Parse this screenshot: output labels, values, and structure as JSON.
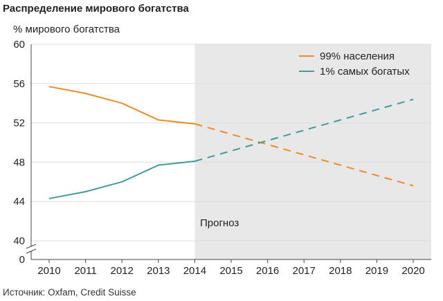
{
  "title": "Распределение мирового богатства",
  "source": "Источник: Oxfam, Credit Suisse",
  "colors": {
    "series_99": "#f08a24",
    "series_1": "#3e9c9e",
    "forecast_band": "#e8e8e8",
    "grid": "#dddddd",
    "axis": "#444444",
    "text": "#222222"
  },
  "chart_data": {
    "type": "line",
    "title": "Распределение мирового богатства",
    "ylabel": "% мирового богатства",
    "xlabel": "",
    "x": [
      2010,
      2011,
      2012,
      2013,
      2014,
      2015,
      2016,
      2017,
      2018,
      2019,
      2020
    ],
    "ylim": [
      40,
      60
    ],
    "y_axis_break": true,
    "yticks": [
      0,
      40,
      44,
      48,
      52,
      56,
      60
    ],
    "grid": true,
    "legend_position": "top-right",
    "forecast_label": "Прогноз",
    "forecast_from": 2014,
    "series": [
      {
        "name": "99% населения",
        "color": "#f08a24",
        "actual": {
          "x": [
            2010,
            2011,
            2012,
            2013,
            2014
          ],
          "y": [
            55.7,
            55.0,
            54.0,
            52.3,
            51.9
          ]
        },
        "forecast": {
          "x": [
            2014,
            2020
          ],
          "y": [
            51.9,
            45.6
          ]
        }
      },
      {
        "name": "1% самых богатых",
        "color": "#3e9c9e",
        "actual": {
          "x": [
            2010,
            2011,
            2012,
            2013,
            2014
          ],
          "y": [
            44.3,
            45.0,
            46.0,
            47.7,
            48.1
          ]
        },
        "forecast": {
          "x": [
            2014,
            2020
          ],
          "y": [
            48.1,
            54.4
          ]
        }
      }
    ]
  }
}
